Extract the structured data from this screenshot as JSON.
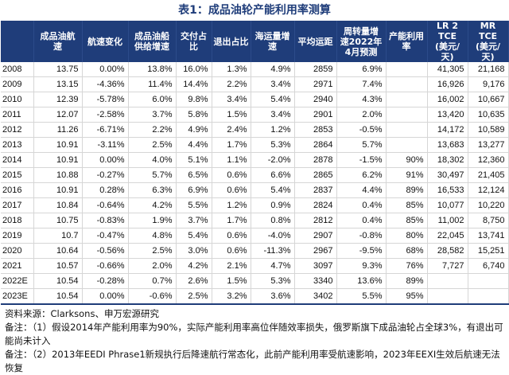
{
  "title": "表1：成品油轮产能利用率测算",
  "headers": [
    "",
    "成品油航\n速",
    "航速变化",
    "成品油船\n供给增速",
    "交付占比",
    "退出占比",
    "海运量增\n速",
    "平均运距",
    "周转量增\n速2022年\n4月预测",
    "产能利用\n率",
    "LR 2 TCE\n(美元/\n天)",
    "MR TCE\n(美元/\n天)"
  ],
  "rows": [
    [
      "2008",
      "13.75",
      "0.00%",
      "13.8%",
      "16.0%",
      "1.3%",
      "4.9%",
      "2859",
      "6.9%",
      "",
      "41,305",
      "21,168"
    ],
    [
      "2009",
      "13.15",
      "-4.36%",
      "11.4%",
      "14.4%",
      "2.2%",
      "3.4%",
      "2971",
      "7.4%",
      "",
      "16,926",
      "9,176"
    ],
    [
      "2010",
      "12.39",
      "-5.78%",
      "6.0%",
      "9.8%",
      "3.4%",
      "5.4%",
      "2940",
      "4.3%",
      "",
      "16,002",
      "10,667"
    ],
    [
      "2011",
      "12.07",
      "-2.58%",
      "3.7%",
      "5.8%",
      "1.5%",
      "3.4%",
      "2901",
      "2.0%",
      "",
      "13,420",
      "10,635"
    ],
    [
      "2012",
      "11.26",
      "-6.71%",
      "2.2%",
      "4.9%",
      "2.4%",
      "1.2%",
      "2853",
      "-0.5%",
      "",
      "14,172",
      "10,589"
    ],
    [
      "2013",
      "10.91",
      "-3.11%",
      "2.5%",
      "4.4%",
      "1.7%",
      "5.3%",
      "2864",
      "5.7%",
      "",
      "13,683",
      "13,277"
    ],
    [
      "2014",
      "10.91",
      "0.00%",
      "4.0%",
      "5.1%",
      "1.1%",
      "-2.0%",
      "2878",
      "-1.5%",
      "90%",
      "18,302",
      "12,360"
    ],
    [
      "2015",
      "10.88",
      "-0.27%",
      "5.7%",
      "6.5%",
      "0.6%",
      "6.6%",
      "2865",
      "6.2%",
      "91%",
      "30,497",
      "21,405"
    ],
    [
      "2016",
      "10.91",
      "0.28%",
      "6.3%",
      "6.9%",
      "0.6%",
      "5.4%",
      "2837",
      "4.4%",
      "89%",
      "16,533",
      "12,124"
    ],
    [
      "2017",
      "10.84",
      "-0.64%",
      "4.2%",
      "5.5%",
      "1.2%",
      "0.9%",
      "2824",
      "0.4%",
      "85%",
      "10,077",
      "10,220"
    ],
    [
      "2018",
      "10.75",
      "-0.83%",
      "1.9%",
      "3.7%",
      "1.7%",
      "0.8%",
      "2812",
      "0.4%",
      "85%",
      "11,002",
      "8,750"
    ],
    [
      "2019",
      "10.7",
      "-0.47%",
      "4.8%",
      "5.4%",
      "0.6%",
      "-4.0%",
      "2907",
      "-0.8%",
      "80%",
      "22,045",
      "13,741"
    ],
    [
      "2020",
      "10.64",
      "-0.56%",
      "2.5%",
      "3.0%",
      "0.6%",
      "-11.3%",
      "2967",
      "-9.5%",
      "68%",
      "28,582",
      "15,251"
    ],
    [
      "2021",
      "10.57",
      "-0.66%",
      "2.0%",
      "4.2%",
      "2.1%",
      "4.7%",
      "3097",
      "9.3%",
      "76%",
      "7,727",
      "6,740"
    ],
    [
      "2022E",
      "10.54",
      "-0.28%",
      "0.7%",
      "2.6%",
      "1.5%",
      "5.3%",
      "3340",
      "13.6%",
      "89%",
      "",
      ""
    ],
    [
      "2023E",
      "10.54",
      "0.00%",
      "-0.6%",
      "2.5%",
      "3.2%",
      "3.6%",
      "3402",
      "5.5%",
      "95%",
      "",
      ""
    ]
  ],
  "notes": {
    "source": "资料来源：Clarksons、申万宏源研究",
    "note1": "备注：（1）假设2014年产能利用率为90%，实际产能利用率高位伴随效率损失，俄罗斯旗下成品油轮占全球3%，有退出可能尚未计入",
    "note2": "备注：（2）2013年EEDI Phrase1新规执行后降速航行常态化，此前产能利用率受航速影响，2023年EEXI生效后航速无法恢复"
  }
}
